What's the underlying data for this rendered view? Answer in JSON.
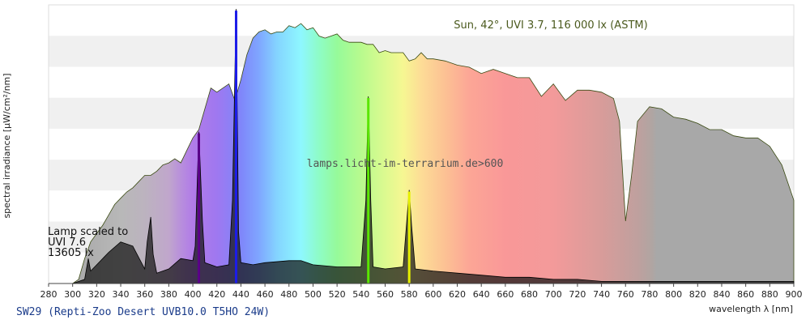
{
  "chart_data": {
    "type": "area",
    "title": "Sun, 42°, UVI 3.7, 116 000 lx (ASTM)",
    "xlabel": "wavelength λ [nm]",
    "ylabel": "spectral irradiance [μW/cm²/nm]",
    "xlim": [
      280,
      900
    ],
    "x_ticks": [
      "280",
      "300",
      "320",
      "340",
      "360",
      "380",
      "400",
      "420",
      "440",
      "460",
      "480",
      "500",
      "520",
      "540",
      "560",
      "580",
      "600",
      "620",
      "640",
      "660",
      "680",
      "700",
      "720",
      "740",
      "760",
      "780",
      "800",
      "820",
      "840",
      "860",
      "880",
      "900"
    ],
    "grid": "horizontal bands",
    "watermark": "lamps.licht-im-terrarium.de>600",
    "lamp_annotation": [
      "Lamp scaled to",
      "UVI 7.6",
      "13605 lx"
    ],
    "footer": "SW29 (Repti-Zoo Desert UVB10.0 T5HO 24W)",
    "series": [
      {
        "name": "Sun, 42°, UVI 3.7, 116 000 lx (ASTM)",
        "x": [
          280,
          300,
          305,
          310,
          315,
          320,
          325,
          330,
          335,
          340,
          345,
          350,
          355,
          360,
          365,
          370,
          375,
          380,
          385,
          390,
          395,
          400,
          405,
          410,
          415,
          420,
          425,
          430,
          435,
          440,
          445,
          450,
          455,
          460,
          465,
          470,
          475,
          480,
          485,
          490,
          495,
          500,
          505,
          510,
          515,
          520,
          525,
          530,
          535,
          540,
          545,
          550,
          555,
          560,
          565,
          570,
          575,
          580,
          585,
          590,
          595,
          600,
          610,
          620,
          630,
          640,
          650,
          660,
          670,
          680,
          690,
          700,
          710,
          720,
          730,
          740,
          750,
          755,
          760,
          765,
          770,
          780,
          790,
          800,
          810,
          820,
          830,
          840,
          850,
          860,
          870,
          880,
          890,
          900
        ],
        "values": [
          0,
          0,
          2,
          12,
          20,
          24,
          28,
          33,
          38,
          41,
          44,
          46,
          49,
          52,
          52,
          54,
          57,
          58,
          60,
          58,
          64,
          70,
          74,
          84,
          94,
          92,
          94,
          96,
          88,
          98,
          110,
          118,
          121,
          122,
          120,
          121,
          121,
          124,
          123,
          125,
          122,
          123,
          119,
          118,
          119,
          120,
          117,
          116,
          116,
          116,
          115,
          115,
          111,
          112,
          111,
          111,
          111,
          107,
          108,
          111,
          108,
          108,
          107,
          105,
          104,
          101,
          103,
          101,
          99,
          99,
          90,
          96,
          88,
          93,
          93,
          92,
          89,
          78,
          30,
          52,
          78,
          85,
          84,
          80,
          79,
          77,
          74,
          74,
          71,
          70,
          70,
          66,
          57,
          40
        ]
      },
      {
        "name": "SW29 (Repti-Zoo Desert UVB10.0 T5HO 24W)",
        "x": [
          280,
          300,
          310,
          313,
          315,
          320,
          330,
          340,
          350,
          360,
          362,
          365,
          367,
          370,
          380,
          390,
          400,
          402,
          405,
          408,
          410,
          420,
          430,
          433,
          436,
          438,
          440,
          450,
          460,
          480,
          490,
          500,
          520,
          540,
          544,
          546,
          548,
          550,
          560,
          575,
          578,
          580,
          582,
          585,
          600,
          620,
          640,
          660,
          680,
          700,
          720,
          740,
          760,
          780,
          800,
          820,
          840,
          860,
          880,
          900
        ],
        "values": [
          0,
          0,
          2,
          12,
          6,
          9,
          15,
          20,
          18,
          7,
          20,
          32,
          14,
          5,
          7,
          12,
          11,
          18,
          73,
          30,
          10,
          8,
          9,
          40,
          132,
          25,
          10,
          9,
          10,
          11,
          11,
          9,
          8,
          8,
          40,
          90,
          40,
          8,
          7,
          8,
          30,
          45,
          28,
          7,
          6,
          5,
          4,
          3,
          3,
          2,
          2,
          1,
          1,
          1,
          1,
          1,
          1,
          1,
          1,
          1
        ]
      }
    ],
    "ylim": [
      0,
      134
    ],
    "colors": {
      "sun_outline": "#3a4a12",
      "lamp_fill": "#000000",
      "band": "#f0f0f0",
      "footer": "#1a3b8a"
    }
  }
}
